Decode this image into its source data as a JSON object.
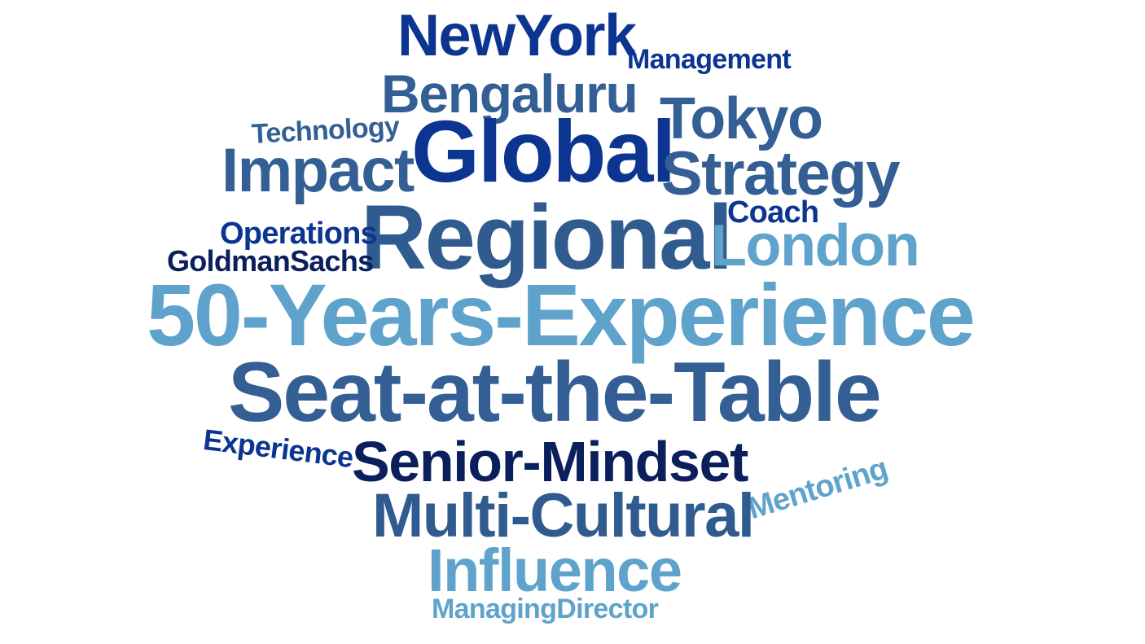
{
  "colors": {
    "navy": "#0a1f5c",
    "royal": "#0b3590",
    "steel": "#2f5b8f",
    "slate": "#345f94",
    "light": "#5fa3cc"
  },
  "words": {
    "newyork": "NewYork",
    "management": "Management",
    "bengaluru": "Bengaluru",
    "tokyo": "Tokyo",
    "technology": "Technology",
    "global": "Global",
    "impact": "Impact",
    "strategy": "Strategy",
    "coach": "Coach",
    "regional": "Regional",
    "operations": "Operations",
    "london": "London",
    "goldmansachs": "GoldmanSachs",
    "fifty_years": "50-Years-Experience",
    "seat_at_table": "Seat-at-the-Table",
    "experience": "Experience",
    "senior_mindset": "Senior-Mindset",
    "mentoring": "Mentoring",
    "multi_cultural": "Multi-Cultural",
    "influence": "Influence",
    "managing_director": "ManagingDirector"
  },
  "word_colors": {
    "newyork": "royal",
    "management": "royal",
    "bengaluru": "slate",
    "tokyo": "slate",
    "technology": "slate",
    "global": "royal",
    "impact": "slate",
    "strategy": "slate",
    "coach": "royal",
    "regional": "steel",
    "operations": "royal",
    "london": "light",
    "goldmansachs": "navy",
    "fifty_years": "light",
    "seat_at_table": "slate",
    "experience": "royal",
    "senior_mindset": "navy",
    "mentoring": "light",
    "multi_cultural": "steel",
    "influence": "light",
    "managing_director": "light"
  }
}
